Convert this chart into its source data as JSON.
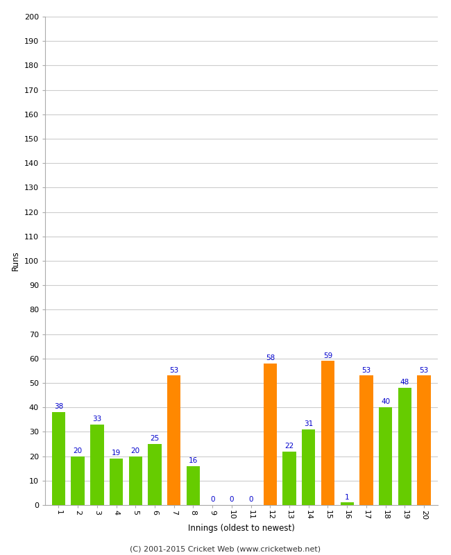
{
  "xlabel": "Innings (oldest to newest)",
  "ylabel": "Runs",
  "innings": [
    1,
    2,
    3,
    4,
    5,
    6,
    7,
    8,
    9,
    10,
    11,
    12,
    13,
    14,
    15,
    16,
    17,
    18,
    19,
    20
  ],
  "values": [
    38,
    20,
    33,
    19,
    20,
    25,
    53,
    16,
    0,
    0,
    0,
    58,
    22,
    31,
    59,
    1,
    53,
    40,
    48,
    53
  ],
  "colors": [
    "#66cc00",
    "#66cc00",
    "#66cc00",
    "#66cc00",
    "#66cc00",
    "#66cc00",
    "#ff8800",
    "#66cc00",
    "#66cc00",
    "#66cc00",
    "#66cc00",
    "#ff8800",
    "#66cc00",
    "#66cc00",
    "#ff8800",
    "#66cc00",
    "#ff8800",
    "#66cc00",
    "#66cc00",
    "#ff8800"
  ],
  "ylim": [
    0,
    200
  ],
  "yticks": [
    0,
    10,
    20,
    30,
    40,
    50,
    60,
    70,
    80,
    90,
    100,
    110,
    120,
    130,
    140,
    150,
    160,
    170,
    180,
    190,
    200
  ],
  "label_color": "#0000cc",
  "background_color": "#ffffff",
  "grid_color": "#cccccc",
  "footer": "(C) 2001-2015 Cricket Web (www.cricketweb.net)",
  "bar_width": 0.7,
  "tick_rotation": 270
}
